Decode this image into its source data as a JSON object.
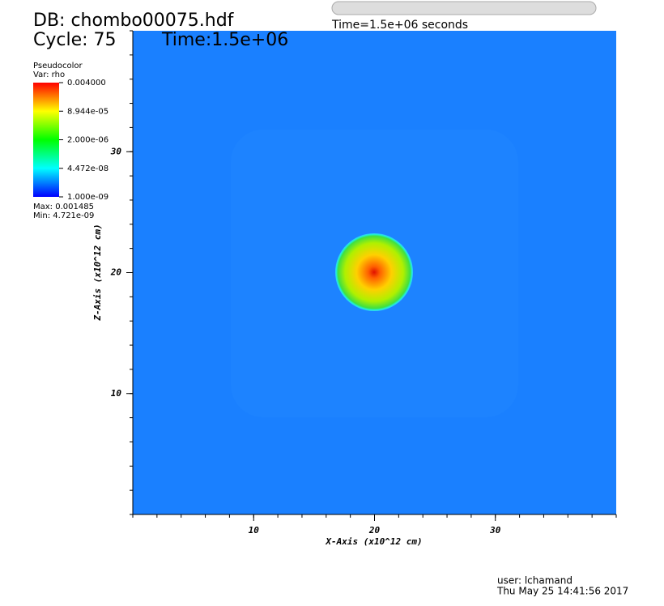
{
  "chart_data": {
    "type": "pseudocolor",
    "title": "DB: chombo00075.hdf",
    "cycle": "Cycle: 75",
    "time": "Time:1.5e+06",
    "slider_label": "Time=1.5e+06 seconds",
    "x_label": "X-Axis (x10^12 cm)",
    "y_label": "Z-Axis (x10^12 cm)",
    "xlim": [
      0,
      40
    ],
    "xticks": [
      10,
      20,
      30
    ],
    "ylim": [
      0,
      40
    ],
    "yticks": [
      10,
      20,
      30
    ],
    "legend": {
      "plot": "Pseudocolor",
      "var": "Var: rho",
      "log_scale": true,
      "lim": [
        1e-09,
        0.004
      ],
      "ticks": [
        {
          "value": 0.004,
          "label": "0.004000"
        },
        {
          "value": 8.944e-05,
          "label": "8.944e-05"
        },
        {
          "value": 2e-06,
          "label": "2.000e-06"
        },
        {
          "value": 4.472e-08,
          "label": "4.472e-08"
        },
        {
          "value": 1e-09,
          "label": "1.000e-09"
        }
      ],
      "max": "Max: 0.001485",
      "min": "Min: 4.721e-09"
    },
    "user": "user: lchamand",
    "date": "Thu May 25 14:41:56 2017"
  }
}
